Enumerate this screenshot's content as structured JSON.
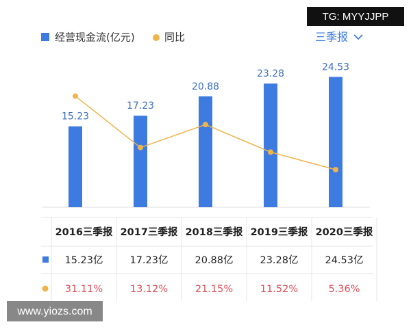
{
  "chart_data": {
    "type": "bar-line",
    "dropdown": "三季报",
    "watermarks": [
      "TG: MYYJJPP",
      "www.yiozs.com"
    ],
    "categories": [
      "2016三季报",
      "2017三季报",
      "2018三季报",
      "2019三季报",
      "2020三季报"
    ],
    "series": [
      {
        "name": "经营现金流(亿元)",
        "type": "bar",
        "color": "#3d7be0",
        "values": [
          15.23,
          17.23,
          20.88,
          23.28,
          24.53
        ],
        "value_labels": [
          "15.23亿",
          "17.23亿",
          "20.88亿",
          "23.28亿",
          "24.53亿"
        ]
      },
      {
        "name": "同比",
        "type": "line",
        "axis": "y2",
        "color": "#f0b44c",
        "values": [
          31.11,
          13.12,
          21.15,
          11.52,
          5.36
        ],
        "value_labels": [
          "31.11%",
          "13.12%",
          "21.15%",
          "11.52%",
          "5.36%"
        ]
      }
    ],
    "ylim": [
      0,
      30
    ],
    "y2lim": [
      0,
      48
    ]
  }
}
